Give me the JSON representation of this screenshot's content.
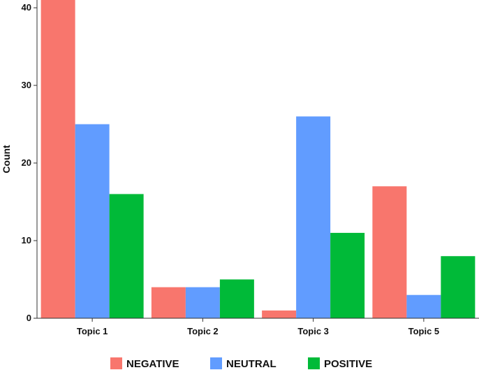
{
  "chart_data": {
    "type": "bar",
    "title": "",
    "xlabel": "",
    "ylabel": "Count",
    "ylim": [
      0,
      41
    ],
    "yticks": [
      0,
      10,
      20,
      30,
      40
    ],
    "categories": [
      "Topic 1",
      "Topic 2",
      "Topic 3",
      "Topic 5"
    ],
    "series": [
      {
        "name": "NEGATIVE",
        "color": "#F8766D",
        "values": [
          41,
          4,
          1,
          17
        ]
      },
      {
        "name": "NEUTRAL",
        "color": "#619CFF",
        "values": [
          25,
          4,
          26,
          3
        ]
      },
      {
        "name": "POSITIVE",
        "color": "#00BA38",
        "values": [
          16,
          5,
          11,
          8
        ]
      }
    ],
    "grid": false,
    "legend_position": "bottom"
  }
}
